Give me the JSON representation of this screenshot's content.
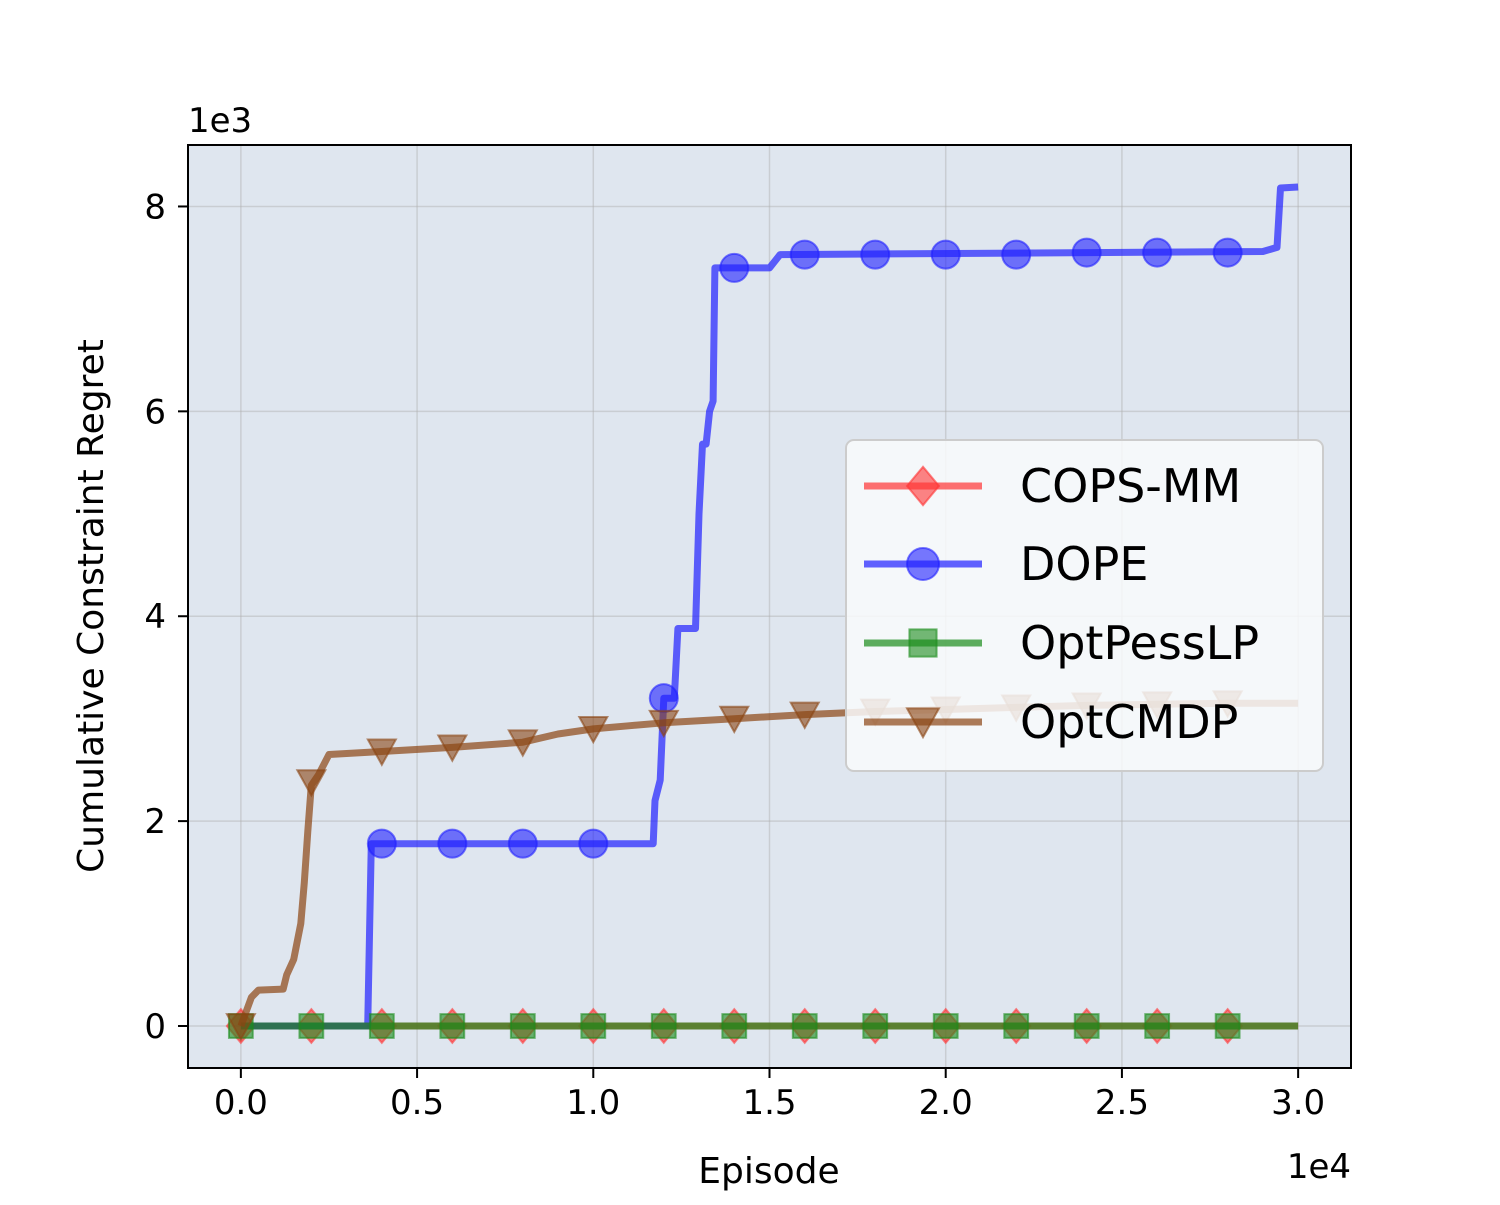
{
  "chart_data": {
    "type": "line",
    "xlabel": "Episode",
    "ylabel": "Cumulative Constraint Regret",
    "x_offset_label": "1e4",
    "y_offset_label": "1e3",
    "xlim": [
      -1500,
      31500
    ],
    "ylim": [
      -410,
      8600
    ],
    "xticks": [
      0,
      5000,
      10000,
      15000,
      20000,
      25000,
      30000
    ],
    "xtick_labels": [
      "0.0",
      "0.5",
      "1.0",
      "1.5",
      "2.0",
      "2.5",
      "3.0"
    ],
    "yticks": [
      0,
      2000,
      4000,
      6000,
      8000
    ],
    "ytick_labels": [
      "0",
      "2",
      "4",
      "6",
      "8"
    ],
    "grid": true,
    "legend_position": "center-right",
    "series": [
      {
        "name": "COPS-MM",
        "color": "#ff3333",
        "marker": "diamond",
        "line": [
          [
            0,
            0
          ],
          [
            30000,
            0
          ]
        ],
        "markers": [
          [
            0,
            0
          ],
          [
            2000,
            0
          ],
          [
            4000,
            0
          ],
          [
            6000,
            0
          ],
          [
            8000,
            0
          ],
          [
            10000,
            0
          ],
          [
            12000,
            0
          ],
          [
            14000,
            0
          ],
          [
            16000,
            0
          ],
          [
            18000,
            0
          ],
          [
            20000,
            0
          ],
          [
            22000,
            0
          ],
          [
            24000,
            0
          ],
          [
            26000,
            0
          ],
          [
            28000,
            0
          ]
        ]
      },
      {
        "name": "DOPE",
        "color": "#1f1fff",
        "marker": "circle",
        "line": [
          [
            0,
            0
          ],
          [
            3600,
            0
          ],
          [
            3700,
            1780
          ],
          [
            11700,
            1780
          ],
          [
            11750,
            2200
          ],
          [
            11900,
            2400
          ],
          [
            12000,
            3200
          ],
          [
            12300,
            3200
          ],
          [
            12400,
            3880
          ],
          [
            12900,
            3880
          ],
          [
            13000,
            5000
          ],
          [
            13100,
            5680
          ],
          [
            13200,
            5680
          ],
          [
            13300,
            6000
          ],
          [
            13400,
            6100
          ],
          [
            13450,
            7400
          ],
          [
            15000,
            7400
          ],
          [
            15300,
            7530
          ],
          [
            29000,
            7560
          ],
          [
            29400,
            7600
          ],
          [
            29500,
            8180
          ],
          [
            30000,
            8190
          ]
        ],
        "markers": [
          [
            4000,
            1780
          ],
          [
            6000,
            1780
          ],
          [
            8000,
            1780
          ],
          [
            10000,
            1780
          ],
          [
            12000,
            3200
          ],
          [
            14000,
            7400
          ],
          [
            16000,
            7530
          ],
          [
            18000,
            7530
          ],
          [
            20000,
            7530
          ],
          [
            22000,
            7530
          ],
          [
            24000,
            7550
          ],
          [
            26000,
            7550
          ],
          [
            28000,
            7550
          ]
        ]
      },
      {
        "name": "OptPessLP",
        "color": "#1a8c1a",
        "marker": "square",
        "line": [
          [
            0,
            0
          ],
          [
            30000,
            0
          ]
        ],
        "markers": [
          [
            0,
            0
          ],
          [
            2000,
            0
          ],
          [
            4000,
            0
          ],
          [
            6000,
            0
          ],
          [
            8000,
            0
          ],
          [
            10000,
            0
          ],
          [
            12000,
            0
          ],
          [
            14000,
            0
          ],
          [
            16000,
            0
          ],
          [
            18000,
            0
          ],
          [
            20000,
            0
          ],
          [
            22000,
            0
          ],
          [
            24000,
            0
          ],
          [
            26000,
            0
          ],
          [
            28000,
            0
          ]
        ]
      },
      {
        "name": "OptCMDP",
        "color": "#8b4513",
        "marker": "triangle-down",
        "line": [
          [
            0,
            0
          ],
          [
            300,
            280
          ],
          [
            500,
            350
          ],
          [
            1200,
            360
          ],
          [
            1300,
            500
          ],
          [
            1500,
            650
          ],
          [
            1700,
            1000
          ],
          [
            1800,
            1400
          ],
          [
            1900,
            1900
          ],
          [
            2000,
            2350
          ],
          [
            2200,
            2450
          ],
          [
            2500,
            2650
          ],
          [
            4000,
            2680
          ],
          [
            6000,
            2720
          ],
          [
            8000,
            2770
          ],
          [
            9000,
            2850
          ],
          [
            10000,
            2900
          ],
          [
            11000,
            2930
          ],
          [
            12000,
            2960
          ],
          [
            14000,
            3000
          ],
          [
            16000,
            3040
          ],
          [
            18000,
            3070
          ],
          [
            20000,
            3090
          ],
          [
            22000,
            3110
          ],
          [
            24000,
            3130
          ],
          [
            26000,
            3140
          ],
          [
            28000,
            3150
          ],
          [
            30000,
            3150
          ]
        ],
        "markers": [
          [
            0,
            0
          ],
          [
            2000,
            2380
          ],
          [
            4000,
            2680
          ],
          [
            6000,
            2720
          ],
          [
            8000,
            2770
          ],
          [
            10000,
            2900
          ],
          [
            12000,
            2960
          ],
          [
            14000,
            3000
          ],
          [
            16000,
            3040
          ],
          [
            18000,
            3070
          ],
          [
            20000,
            3090
          ],
          [
            22000,
            3110
          ],
          [
            24000,
            3130
          ],
          [
            26000,
            3140
          ],
          [
            28000,
            3150
          ]
        ]
      }
    ]
  }
}
